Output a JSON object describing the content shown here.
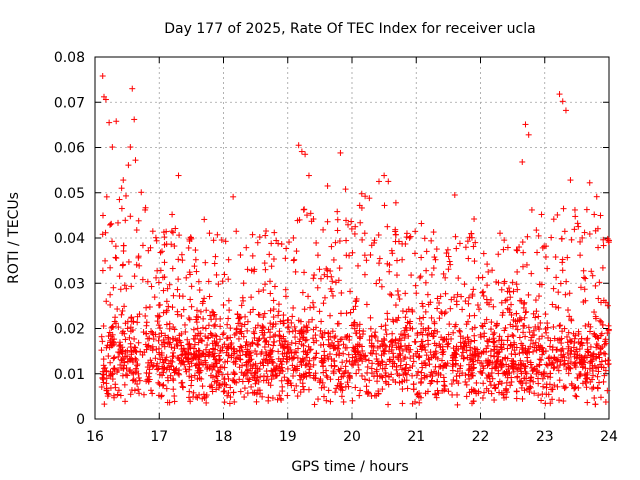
{
  "chart_data": {
    "type": "scatter",
    "title": "Day 177 of 2025, Rate Of TEC Index for receiver ucla",
    "xlabel": "GPS time / hours",
    "ylabel": "ROTI / TECUs",
    "xlim": [
      16,
      24
    ],
    "ylim": [
      0,
      0.08
    ],
    "xticks": [
      16,
      17,
      18,
      19,
      20,
      21,
      22,
      23,
      24
    ],
    "xtick_labels": [
      "16",
      "17",
      "18",
      "19",
      "20",
      "21",
      "22",
      "23",
      "24"
    ],
    "yticks": [
      0,
      0.01,
      0.02,
      0.03,
      0.04,
      0.05,
      0.06,
      0.07,
      0.08
    ],
    "ytick_labels": [
      "0",
      "0.01",
      "0.02",
      "0.03",
      "0.04",
      "0.05",
      "0.06",
      "0.07",
      "0.08"
    ],
    "grid": true,
    "marker": "+",
    "color": "#ff0000",
    "series": [
      {
        "name": "ROTI",
        "x": [
          16.12,
          16.14,
          16.17,
          16.22,
          16.27,
          16.33,
          16.38,
          16.44,
          16.52,
          16.55,
          16.58,
          16.61,
          16.63,
          16.68,
          16.72,
          16.78,
          16.83,
          16.9,
          16.95,
          17.02,
          17.08,
          17.13,
          17.2,
          17.25,
          17.3,
          17.36,
          17.42,
          17.5,
          17.57,
          17.63,
          17.7,
          17.77,
          17.85,
          17.92,
          18.0,
          18.08,
          18.15,
          18.22,
          18.3,
          18.38,
          18.46,
          18.55,
          18.62,
          18.7,
          18.78,
          18.86,
          18.93,
          19.02,
          19.1,
          19.17,
          19.22,
          19.27,
          19.33,
          19.4,
          19.47,
          19.55,
          19.62,
          19.68,
          19.75,
          19.82,
          19.9,
          19.97,
          20.05,
          20.12,
          20.2,
          20.27,
          20.35,
          20.42,
          20.5,
          20.55,
          20.62,
          20.7,
          20.78,
          20.85,
          20.92,
          21.0,
          21.08,
          21.15,
          21.22,
          21.3,
          21.38,
          21.45,
          21.52,
          21.6,
          21.68,
          21.75,
          21.82,
          21.9,
          21.97,
          22.05,
          22.12,
          22.2,
          22.28,
          22.35,
          22.42,
          22.5,
          22.57,
          22.65,
          22.7,
          22.75,
          22.8,
          22.88,
          22.95,
          23.02,
          23.1,
          23.17,
          23.23,
          23.28,
          23.33,
          23.4,
          23.47,
          23.55,
          23.62,
          23.7,
          23.77,
          23.85,
          23.92,
          23.98
        ],
        "y": [
          0.0758,
          0.0712,
          0.0706,
          0.0655,
          0.0601,
          0.0658,
          0.0485,
          0.0528,
          0.0561,
          0.0601,
          0.073,
          0.0662,
          0.0572,
          0.0438,
          0.0501,
          0.0462,
          0.0372,
          0.0415,
          0.0312,
          0.0368,
          0.0402,
          0.0288,
          0.0452,
          0.0421,
          0.0538,
          0.0351,
          0.0312,
          0.0398,
          0.0352,
          0.0285,
          0.0441,
          0.0304,
          0.0228,
          0.0298,
          0.0252,
          0.0352,
          0.0491,
          0.0231,
          0.0268,
          0.0215,
          0.0242,
          0.0282,
          0.0225,
          0.0198,
          0.0262,
          0.0238,
          0.0211,
          0.0391,
          0.0352,
          0.0605,
          0.0591,
          0.0585,
          0.0538,
          0.0442,
          0.0362,
          0.0418,
          0.0515,
          0.0381,
          0.0302,
          0.0588,
          0.0508,
          0.0282,
          0.0425,
          0.0472,
          0.0362,
          0.0488,
          0.0395,
          0.0525,
          0.0538,
          0.0425,
          0.0372,
          0.0318,
          0.0352,
          0.0402,
          0.0318,
          0.0278,
          0.0432,
          0.0301,
          0.0258,
          0.0352,
          0.0271,
          0.0312,
          0.0348,
          0.0495,
          0.0388,
          0.0298,
          0.0268,
          0.0442,
          0.0312,
          0.0272,
          0.0325,
          0.0248,
          0.0301,
          0.0235,
          0.0282,
          0.0302,
          0.0325,
          0.0568,
          0.0651,
          0.0628,
          0.0462,
          0.0368,
          0.0452,
          0.0382,
          0.0401,
          0.0358,
          0.0718,
          0.0702,
          0.0682,
          0.0528,
          0.0462,
          0.0362,
          0.0412,
          0.0522,
          0.0452,
          0.0302,
          0.0262,
          0.0398
        ]
      }
    ]
  }
}
